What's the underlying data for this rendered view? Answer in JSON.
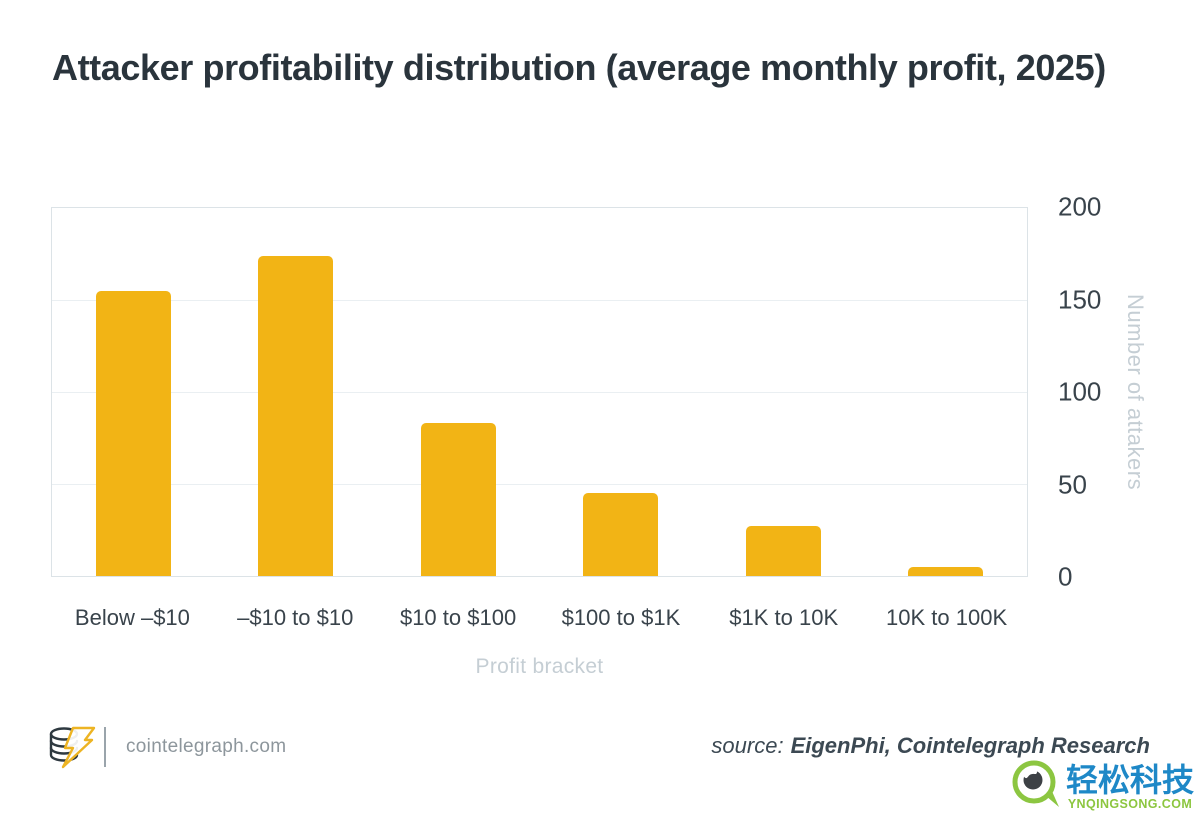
{
  "header": {
    "title": "Attacker profitability distribution (average monthly profit, 2025)"
  },
  "chart_data": {
    "type": "bar",
    "title": "Attacker profitability distribution (average monthly profit, 2025)",
    "categories": [
      "Below –$10",
      "–$10 to $10",
      "$10 to $100",
      "$100 to $1K",
      "$1K to 10K",
      "10K to 100K"
    ],
    "values": [
      155,
      174,
      83,
      45,
      27,
      5
    ],
    "xlabel": "Profit bracket",
    "ylabel": "Number of attakers",
    "ylim": [
      0,
      200
    ],
    "yticks": [
      0,
      50,
      100,
      150,
      200
    ],
    "grid": true,
    "legend": false,
    "bar_color": "#F2B415"
  },
  "footer": {
    "brand": "cointelegraph.com",
    "source_prefix": "source:",
    "source_value": "EigenPhi, Cointelegraph Research"
  },
  "watermark": {
    "name": "轻松科技",
    "site": "YNQINGSONG.COM"
  },
  "icons": {
    "brand_logo": "coin-stack-lightning",
    "watermark_logo": "green-eye-magnifier"
  },
  "colors": {
    "bar": "#F2B415",
    "title_text": "#2A343C",
    "axis_text": "#39434B",
    "muted_axis_text": "#C5CED4",
    "gridline": "#EAEFF2",
    "plot_border": "#DCE3E7",
    "brand_text": "#8D969C",
    "source_text": "#3C4953",
    "watermark_blue": "#1E88C7",
    "watermark_green": "#8CC63F"
  }
}
